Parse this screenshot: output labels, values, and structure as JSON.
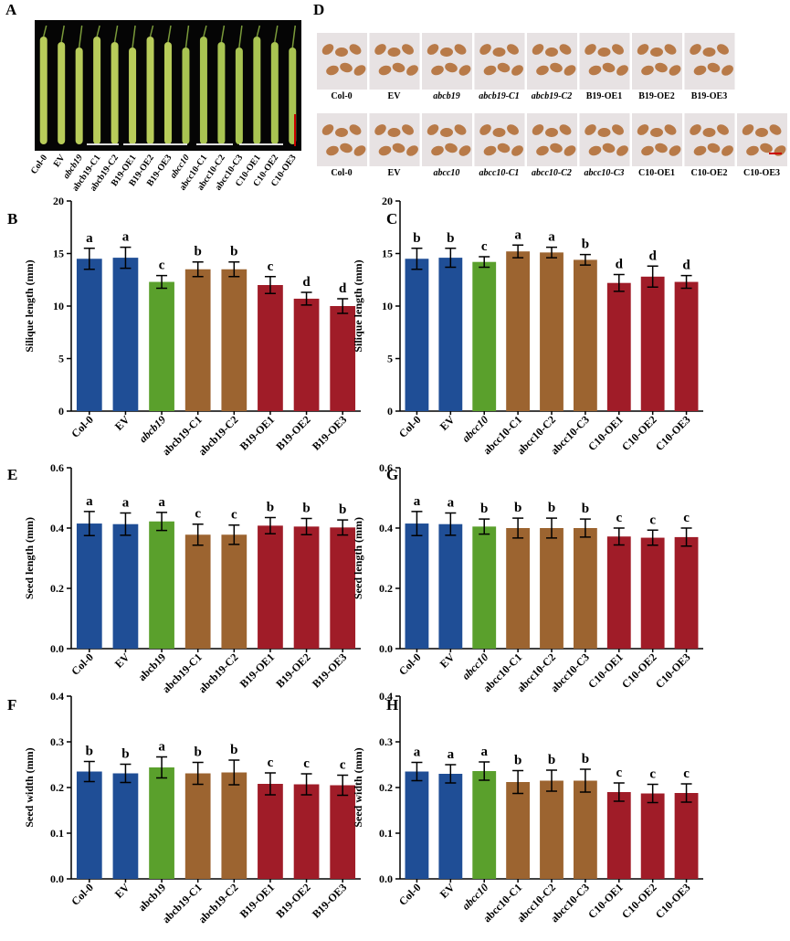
{
  "photo_a": {
    "panel": "A",
    "labels": [
      "Col-0",
      "EV",
      "abcb19",
      "abcb19-C1",
      "abcb19-C2",
      "B19-OE1",
      "B19-OE2",
      "B19-OE3",
      "abcc10",
      "abcc10-C1",
      "abcc10-C2",
      "abcc10-C3",
      "C10-OE1",
      "C10-OE2",
      "C10-OE3"
    ],
    "italic_labels": [
      2,
      8
    ]
  },
  "photo_d": {
    "panel": "D",
    "rows": [
      {
        "labels": [
          "Col-0",
          "EV",
          "abcb19",
          "abcb19-C1",
          "abcb19-C2",
          "B19-OE1",
          "B19-OE2",
          "B19-OE3"
        ],
        "italic_labels": [
          2,
          3,
          4
        ]
      },
      {
        "labels": [
          "Col-0",
          "EV",
          "abcc10",
          "abcc10-C1",
          "abcc10-C2",
          "abcc10-C3",
          "C10-OE1",
          "C10-OE2",
          "C10-OE3"
        ],
        "italic_labels": [
          2,
          3,
          4,
          5
        ]
      }
    ]
  },
  "chart_data": [
    {
      "type": "bar",
      "panel": "B",
      "y_label": "Silique length (mm)",
      "categories": [
        "Col-0",
        "EV",
        "abcb19",
        "abcb19-C1",
        "abcb19-C2",
        "B19-OE1",
        "B19-OE2",
        "B19-OE3"
      ],
      "italic_categories": [
        2
      ],
      "values": [
        14.5,
        14.6,
        12.3,
        13.5,
        13.5,
        12.0,
        10.7,
        10.0
      ],
      "errors": [
        1.0,
        1.0,
        0.6,
        0.7,
        0.7,
        0.8,
        0.6,
        0.7
      ],
      "letters": [
        "a",
        "a",
        "c",
        "b",
        "b",
        "c",
        "d",
        "d"
      ],
      "colors": [
        "#1f4e96",
        "#1f4e96",
        "#5aa02c",
        "#9c6430",
        "#9c6430",
        "#a01c28",
        "#a01c28",
        "#a01c28"
      ],
      "ylim": [
        0,
        20
      ],
      "yticks": [
        0,
        5,
        10,
        15,
        20
      ]
    },
    {
      "type": "bar",
      "panel": "C",
      "y_label": "Silique length (mm)",
      "categories": [
        "Col-0",
        "EV",
        "abcc10",
        "abcc10-C1",
        "abcc10-C2",
        "abcc10-C3",
        "C10-OE1",
        "C10-OE2",
        "C10-OE3"
      ],
      "italic_categories": [
        2
      ],
      "values": [
        14.5,
        14.6,
        14.2,
        15.2,
        15.1,
        14.4,
        12.2,
        12.8,
        12.3
      ],
      "errors": [
        1.0,
        0.9,
        0.5,
        0.6,
        0.5,
        0.5,
        0.8,
        1.0,
        0.6
      ],
      "letters": [
        "b",
        "b",
        "c",
        "a",
        "a",
        "b",
        "d",
        "d",
        "d"
      ],
      "colors": [
        "#1f4e96",
        "#1f4e96",
        "#5aa02c",
        "#9c6430",
        "#9c6430",
        "#9c6430",
        "#a01c28",
        "#a01c28",
        "#a01c28"
      ],
      "ylim": [
        0,
        20
      ],
      "yticks": [
        0,
        5,
        10,
        15,
        20
      ]
    },
    {
      "type": "bar",
      "panel": "E",
      "y_label": "Seed length (mm)",
      "categories": [
        "Col-0",
        "EV",
        "abcb19",
        "abcb19-C1",
        "abcb19-C2",
        "B19-OE1",
        "B19-OE2",
        "B19-OE3"
      ],
      "italic_categories": [],
      "values": [
        0.415,
        0.413,
        0.422,
        0.378,
        0.378,
        0.408,
        0.405,
        0.402
      ],
      "errors": [
        0.04,
        0.037,
        0.03,
        0.035,
        0.032,
        0.027,
        0.027,
        0.025
      ],
      "letters": [
        "a",
        "a",
        "a",
        "c",
        "c",
        "b",
        "b",
        "b"
      ],
      "colors": [
        "#1f4e96",
        "#1f4e96",
        "#5aa02c",
        "#9c6430",
        "#9c6430",
        "#a01c28",
        "#a01c28",
        "#a01c28"
      ],
      "ylim": [
        0,
        0.6
      ],
      "yticks": [
        {
          "value": 0,
          "label": "0.0"
        },
        0.2,
        0.4,
        0.6
      ]
    },
    {
      "type": "bar",
      "panel": "G",
      "y_label": "Seed length (mm)",
      "categories": [
        "Col-0",
        "EV",
        "abcc10",
        "abcc10-C1",
        "abcc10-C2",
        "abcc10-C3",
        "C10-OE1",
        "C10-OE2",
        "C10-OE3"
      ],
      "italic_categories": [
        2
      ],
      "values": [
        0.415,
        0.413,
        0.405,
        0.4,
        0.4,
        0.4,
        0.372,
        0.368,
        0.37
      ],
      "errors": [
        0.04,
        0.037,
        0.025,
        0.033,
        0.033,
        0.03,
        0.028,
        0.025,
        0.03
      ],
      "letters": [
        "a",
        "a",
        "b",
        "b",
        "b",
        "b",
        "c",
        "c",
        "c"
      ],
      "colors": [
        "#1f4e96",
        "#1f4e96",
        "#5aa02c",
        "#9c6430",
        "#9c6430",
        "#9c6430",
        "#a01c28",
        "#a01c28",
        "#a01c28"
      ],
      "ylim": [
        0,
        0.6
      ],
      "yticks": [
        {
          "value": 0,
          "label": "0.0"
        },
        0.2,
        0.4,
        0.6
      ]
    },
    {
      "type": "bar",
      "panel": "F",
      "y_label": "Seed width (mm)",
      "categories": [
        "Col-0",
        "EV",
        "abcb19",
        "abcb19-C1",
        "abcb19-C2",
        "B19-OE1",
        "B19-OE2",
        "B19-OE3"
      ],
      "italic_categories": [],
      "values": [
        0.235,
        0.231,
        0.244,
        0.231,
        0.233,
        0.208,
        0.207,
        0.205
      ],
      "errors": [
        0.022,
        0.02,
        0.023,
        0.024,
        0.027,
        0.024,
        0.023,
        0.022
      ],
      "letters": [
        "b",
        "b",
        "a",
        "b",
        "b",
        "c",
        "c",
        "c"
      ],
      "colors": [
        "#1f4e96",
        "#1f4e96",
        "#5aa02c",
        "#9c6430",
        "#9c6430",
        "#a01c28",
        "#a01c28",
        "#a01c28"
      ],
      "ylim": [
        0,
        0.4
      ],
      "yticks": [
        {
          "value": 0,
          "label": "0.0"
        },
        0.1,
        0.2,
        0.3,
        0.4
      ]
    },
    {
      "type": "bar",
      "panel": "H",
      "y_label": "Seed width (mm)",
      "categories": [
        "Col-0",
        "EV",
        "abcc10",
        "abcc10-C1",
        "abcc10-C2",
        "abcc10-C3",
        "C10-OE1",
        "C10-OE2",
        "C10-OE3"
      ],
      "italic_categories": [
        2
      ],
      "values": [
        0.235,
        0.23,
        0.236,
        0.212,
        0.215,
        0.215,
        0.19,
        0.187,
        0.188
      ],
      "errors": [
        0.02,
        0.02,
        0.02,
        0.025,
        0.023,
        0.025,
        0.02,
        0.02,
        0.02
      ],
      "letters": [
        "a",
        "a",
        "a",
        "b",
        "b",
        "b",
        "c",
        "c",
        "c"
      ],
      "colors": [
        "#1f4e96",
        "#1f4e96",
        "#5aa02c",
        "#9c6430",
        "#9c6430",
        "#9c6430",
        "#a01c28",
        "#a01c28",
        "#a01c28"
      ],
      "ylim": [
        0,
        0.4
      ],
      "yticks": [
        {
          "value": 0,
          "label": "0.0"
        },
        0.1,
        0.2,
        0.3,
        0.4
      ]
    }
  ]
}
